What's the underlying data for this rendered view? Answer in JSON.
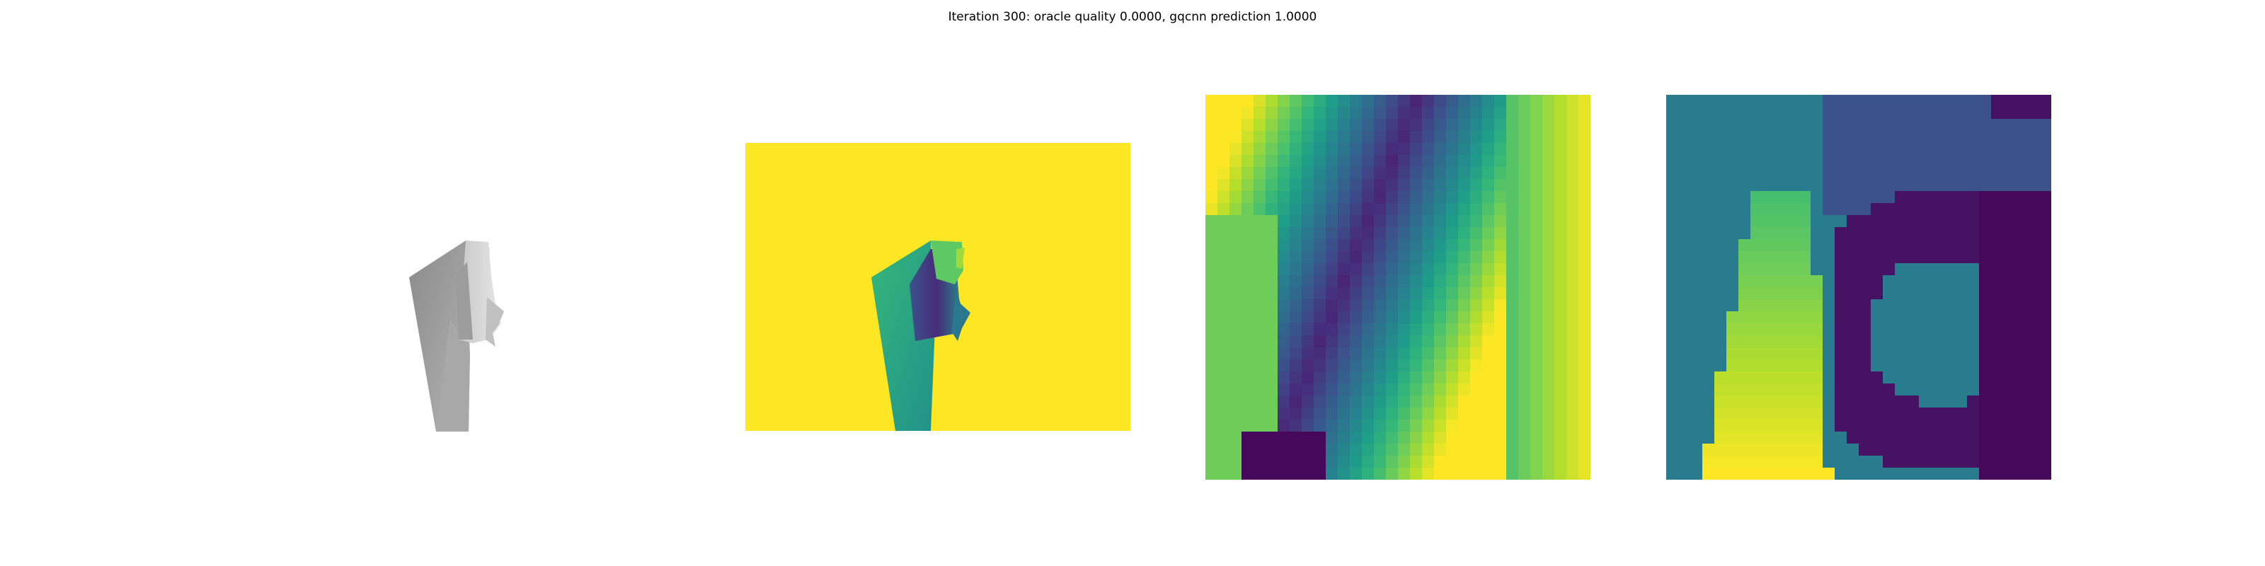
{
  "figure": {
    "title": "Iteration 300: oracle quality 0.0000, gqcnn prediction 1.0000"
  },
  "panels": [
    {
      "name": "color-render",
      "colormap": "gray"
    },
    {
      "name": "depth-image",
      "colormap": "viridis"
    },
    {
      "name": "depth-crop-heatmap",
      "colormap": "viridis"
    },
    {
      "name": "gradient-heatmap",
      "colormap": "viridis"
    }
  ],
  "colors": {
    "viridis_dark": "#440154",
    "viridis_blue": "#31688e",
    "viridis_teal": "#21918c",
    "viridis_green": "#35b779",
    "viridis_yellow": "#fde725",
    "background": "#ffffff"
  }
}
